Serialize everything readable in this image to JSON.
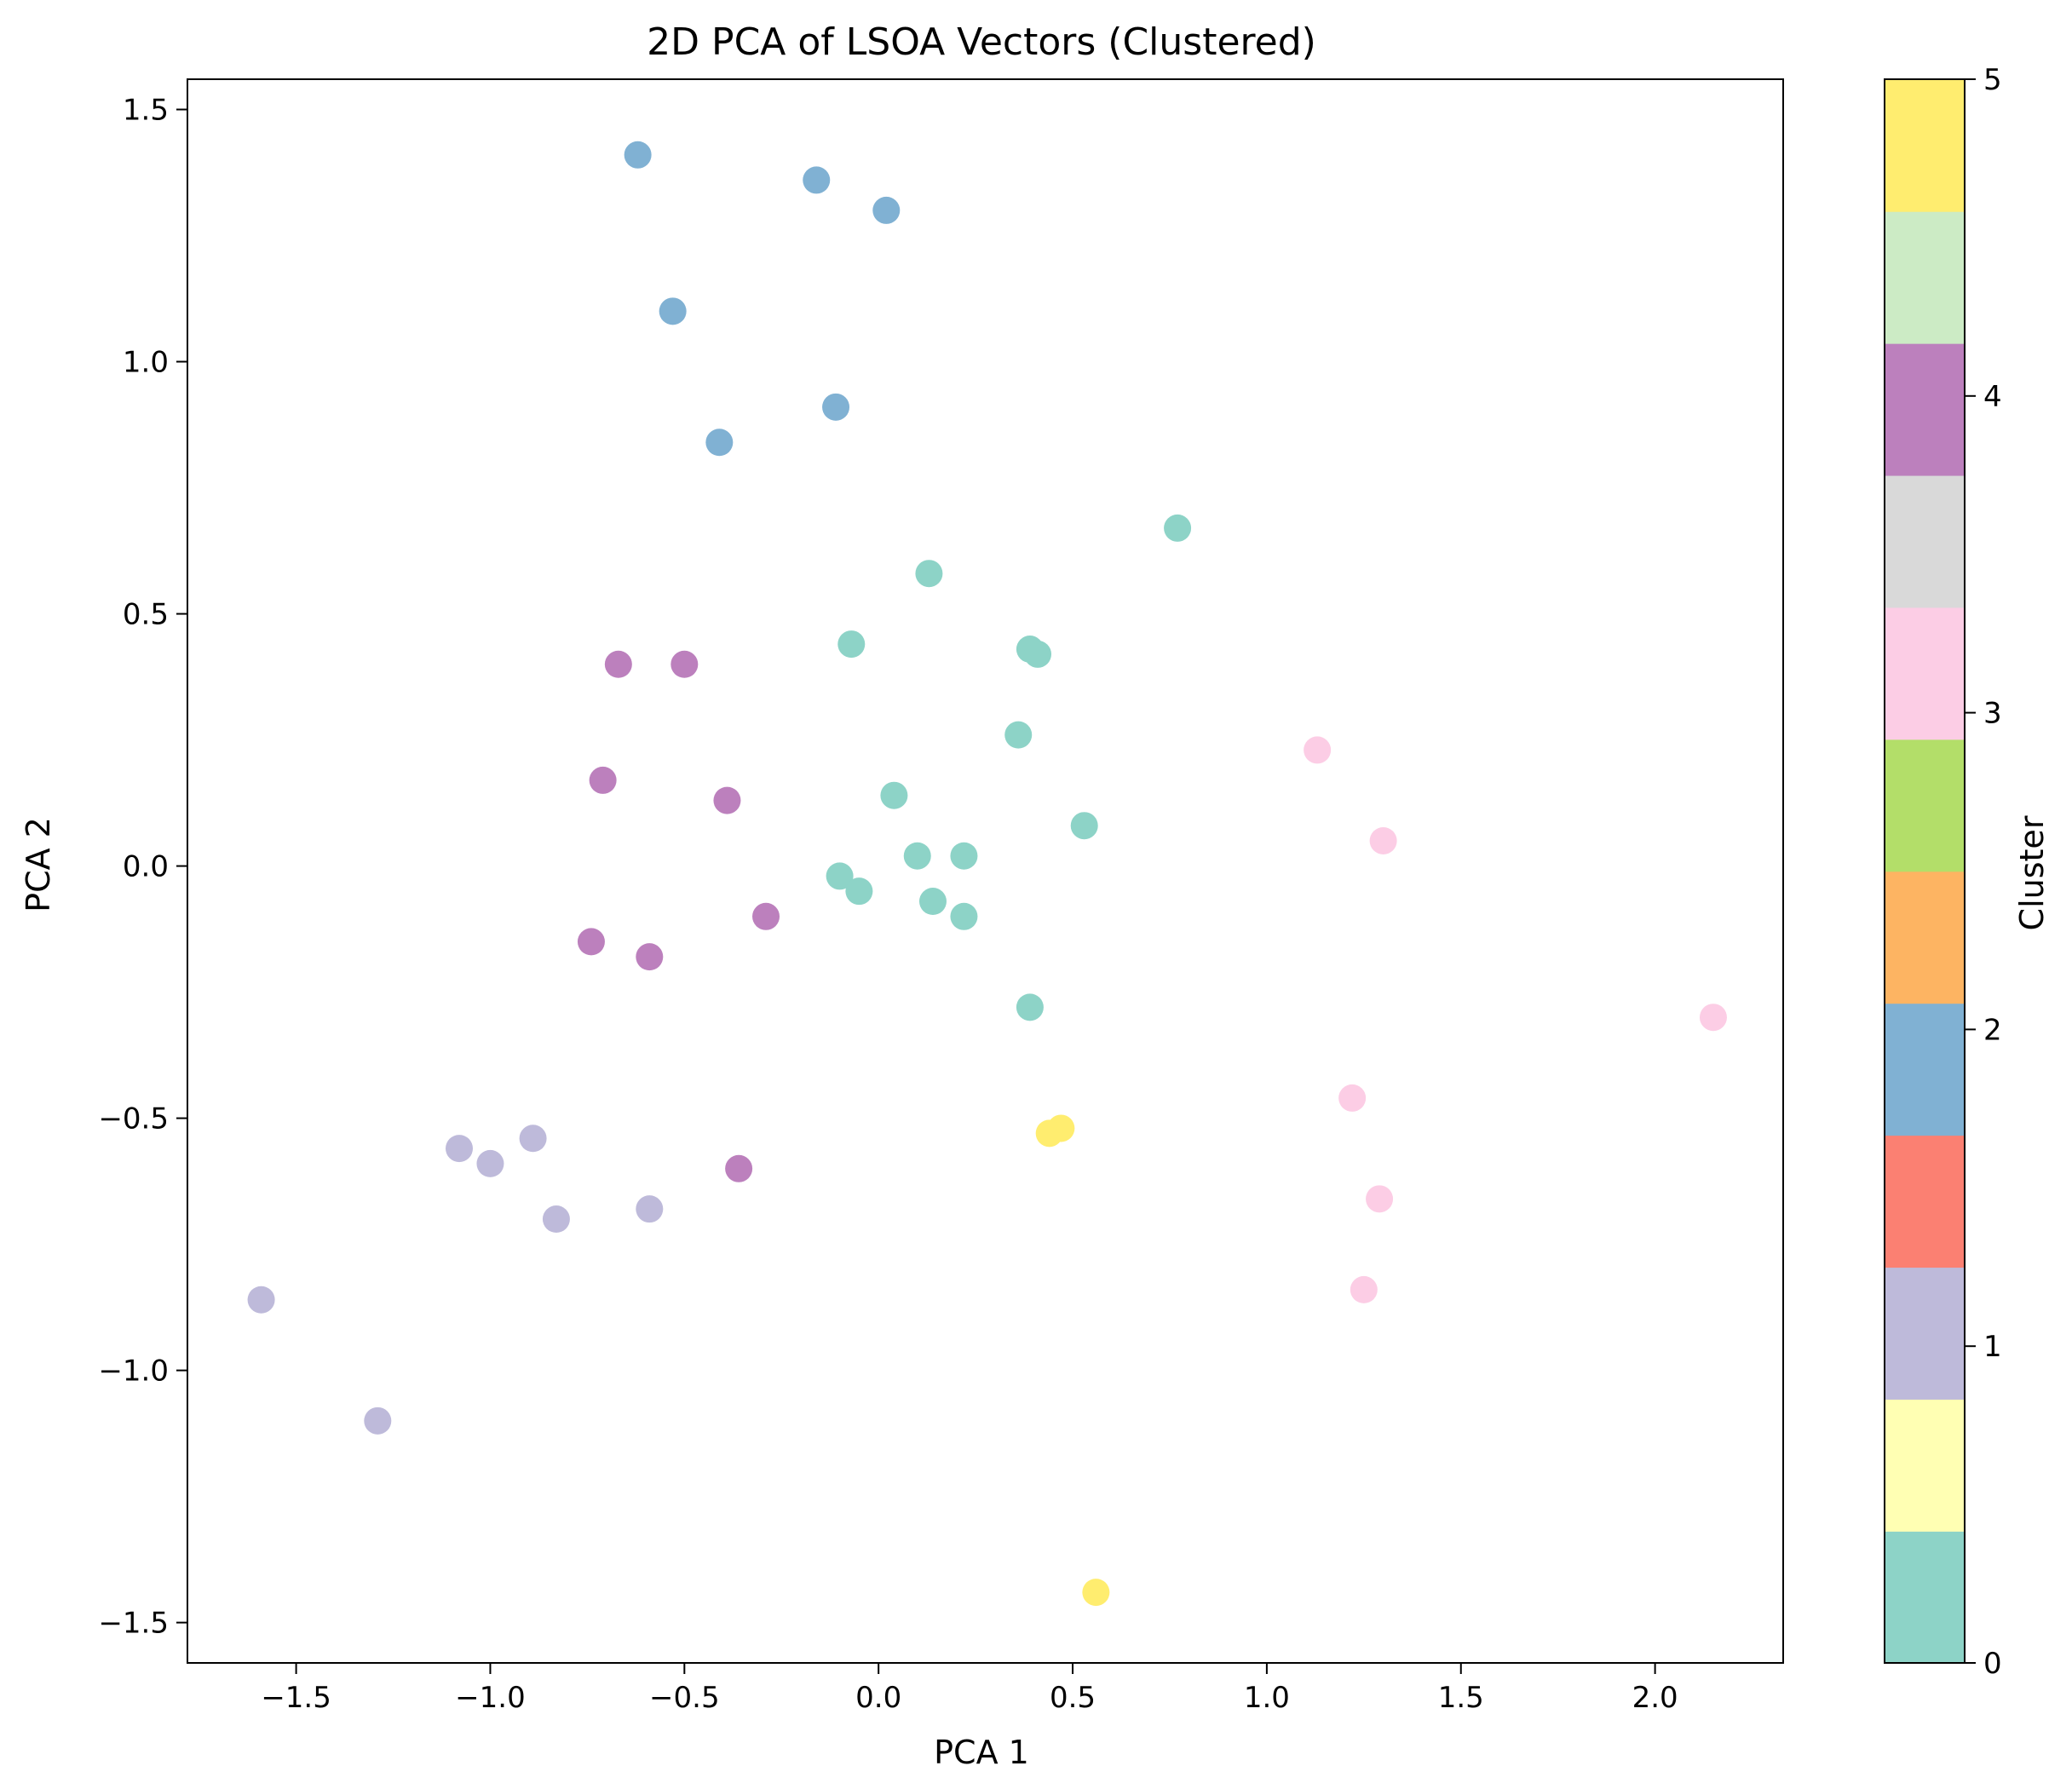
{
  "chart_data": {
    "type": "scatter",
    "title": "2D PCA of LSOA Vectors (Clustered)",
    "xlabel": "PCA 1",
    "ylabel": "PCA 2",
    "xlim": [
      -1.78,
      2.33
    ],
    "ylim": [
      -1.58,
      1.56
    ],
    "x_ticks": [
      -1.5,
      -1.0,
      -0.5,
      0.0,
      0.5,
      1.0,
      1.5,
      2.0
    ],
    "x_tick_labels": [
      "−1.5",
      "−1.0",
      "−0.5",
      "0.0",
      "0.5",
      "1.0",
      "1.5",
      "2.0"
    ],
    "y_ticks": [
      -1.5,
      -1.0,
      -0.5,
      0.0,
      0.5,
      1.0,
      1.5
    ],
    "y_tick_labels": [
      "−1.5",
      "−1.0",
      "−0.5",
      "0.0",
      "0.5",
      "1.0",
      "1.5"
    ],
    "grid": false,
    "colorbar": {
      "label": "Cluster",
      "range": [
        0,
        5
      ],
      "ticks": [
        0,
        1,
        2,
        3,
        4,
        5
      ],
      "tick_labels": [
        "0",
        "1",
        "2",
        "3",
        "4",
        "5"
      ],
      "colors": [
        "#8dd3c7",
        "#ffffb3",
        "#bebada",
        "#fb8072",
        "#80b1d3",
        "#fdb462",
        "#b3de69",
        "#fccde5",
        "#d9d9d9",
        "#bc80bd",
        "#ccebc5",
        "#ffed6f"
      ]
    },
    "cluster_colors": {
      "0": "#8dd3c7",
      "1": "#bebada",
      "2": "#80b1d3",
      "3": "#fccde5",
      "4": "#bc80bd",
      "5": "#ffed6f"
    },
    "points": [
      {
        "x": -0.62,
        "y": 1.41,
        "cluster": 2
      },
      {
        "x": -0.16,
        "y": 1.36,
        "cluster": 2
      },
      {
        "x": 0.02,
        "y": 1.3,
        "cluster": 2
      },
      {
        "x": -0.53,
        "y": 1.1,
        "cluster": 2
      },
      {
        "x": -0.11,
        "y": 0.91,
        "cluster": 2
      },
      {
        "x": -0.41,
        "y": 0.84,
        "cluster": 2
      },
      {
        "x": 0.77,
        "y": 0.67,
        "cluster": 0
      },
      {
        "x": 0.13,
        "y": 0.58,
        "cluster": 0
      },
      {
        "x": -0.07,
        "y": 0.44,
        "cluster": 0
      },
      {
        "x": 0.39,
        "y": 0.43,
        "cluster": 0
      },
      {
        "x": 0.41,
        "y": 0.42,
        "cluster": 0
      },
      {
        "x": 0.36,
        "y": 0.26,
        "cluster": 0
      },
      {
        "x": 0.04,
        "y": 0.14,
        "cluster": 0
      },
      {
        "x": 0.53,
        "y": 0.08,
        "cluster": 0
      },
      {
        "x": 0.1,
        "y": 0.02,
        "cluster": 0
      },
      {
        "x": 0.22,
        "y": 0.02,
        "cluster": 0
      },
      {
        "x": -0.1,
        "y": -0.02,
        "cluster": 0
      },
      {
        "x": -0.05,
        "y": -0.05,
        "cluster": 0
      },
      {
        "x": 0.14,
        "y": -0.07,
        "cluster": 0
      },
      {
        "x": 0.22,
        "y": -0.1,
        "cluster": 0
      },
      {
        "x": 0.39,
        "y": -0.28,
        "cluster": 0
      },
      {
        "x": -0.67,
        "y": 0.4,
        "cluster": 4
      },
      {
        "x": -0.5,
        "y": 0.4,
        "cluster": 4
      },
      {
        "x": -0.71,
        "y": 0.17,
        "cluster": 4
      },
      {
        "x": -0.39,
        "y": 0.13,
        "cluster": 4
      },
      {
        "x": -0.29,
        "y": -0.1,
        "cluster": 4
      },
      {
        "x": -0.74,
        "y": -0.15,
        "cluster": 4
      },
      {
        "x": -0.59,
        "y": -0.18,
        "cluster": 4
      },
      {
        "x": -0.36,
        "y": -0.6,
        "cluster": 4
      },
      {
        "x": 1.13,
        "y": 0.23,
        "cluster": 3
      },
      {
        "x": 1.3,
        "y": 0.05,
        "cluster": 3
      },
      {
        "x": 2.15,
        "y": -0.3,
        "cluster": 3
      },
      {
        "x": 1.22,
        "y": -0.46,
        "cluster": 3
      },
      {
        "x": 1.29,
        "y": -0.66,
        "cluster": 3
      },
      {
        "x": 1.25,
        "y": -0.84,
        "cluster": 3
      },
      {
        "x": 0.47,
        "y": -0.52,
        "cluster": 5
      },
      {
        "x": 0.44,
        "y": -0.53,
        "cluster": 5
      },
      {
        "x": 0.56,
        "y": -1.44,
        "cluster": 5
      },
      {
        "x": -1.08,
        "y": -0.56,
        "cluster": 1
      },
      {
        "x": -1.0,
        "y": -0.59,
        "cluster": 1
      },
      {
        "x": -0.89,
        "y": -0.54,
        "cluster": 1
      },
      {
        "x": -0.83,
        "y": -0.7,
        "cluster": 1
      },
      {
        "x": -0.59,
        "y": -0.68,
        "cluster": 1
      },
      {
        "x": -1.59,
        "y": -0.86,
        "cluster": 1
      },
      {
        "x": -1.29,
        "y": -1.1,
        "cluster": 1
      }
    ]
  }
}
